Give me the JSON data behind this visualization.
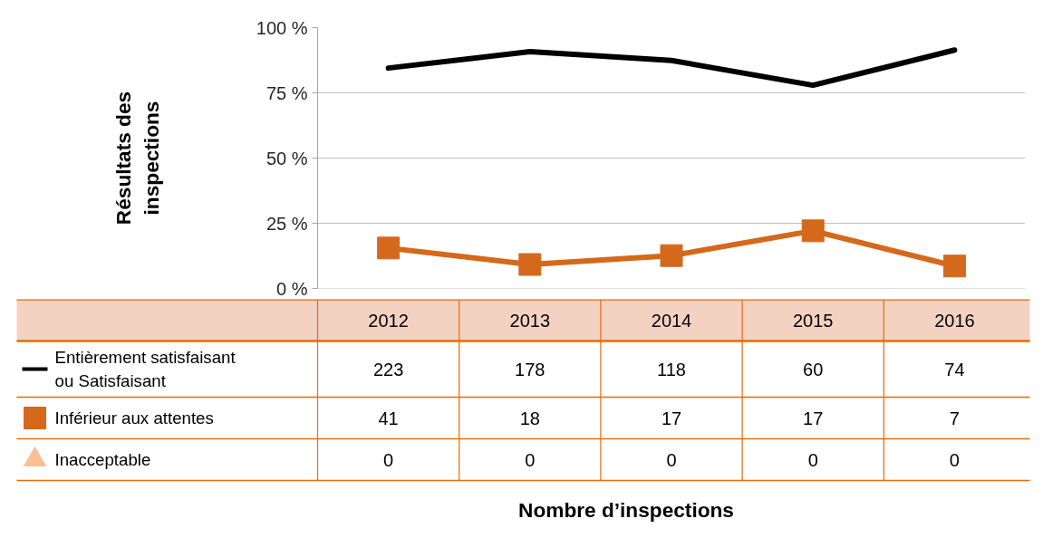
{
  "chart_data": {
    "type": "line",
    "ylabel": "Résultats des inspections",
    "categories": [
      "2012",
      "2013",
      "2014",
      "2015",
      "2016"
    ],
    "ylim": [
      0,
      100
    ],
    "yticks": [
      {
        "value": 0,
        "label": "0 %"
      },
      {
        "value": 25,
        "label": "25 %"
      },
      {
        "value": 50,
        "label": "50 %"
      },
      {
        "value": 75,
        "label": "75 %"
      },
      {
        "value": 100,
        "label": "100 %"
      }
    ],
    "grid": "y",
    "legend": "bottom left",
    "tick_labels": "y",
    "series": [
      {
        "name": "Entièrement satisfaisant ou Satisfaisant",
        "color": "#000000",
        "marker": "none",
        "values": [
          84.5,
          90.8,
          87.4,
          77.9,
          91.4
        ]
      },
      {
        "name": "Inférieur aux attentes",
        "color": "#d4691c",
        "marker": "square",
        "values": [
          15.5,
          9.2,
          12.6,
          22.1,
          8.6
        ]
      },
      {
        "name": "Inacceptable",
        "color": "#f9bf95",
        "marker": "triangle",
        "values": [
          null,
          null,
          null,
          null,
          null
        ]
      }
    ],
    "annotations": [
      "223",
      "178",
      "118",
      "60",
      "74",
      "41",
      "18",
      "17",
      "17",
      "7",
      "0",
      "0",
      "0",
      "0",
      "0",
      "Nombre d’inspections"
    ]
  }
}
